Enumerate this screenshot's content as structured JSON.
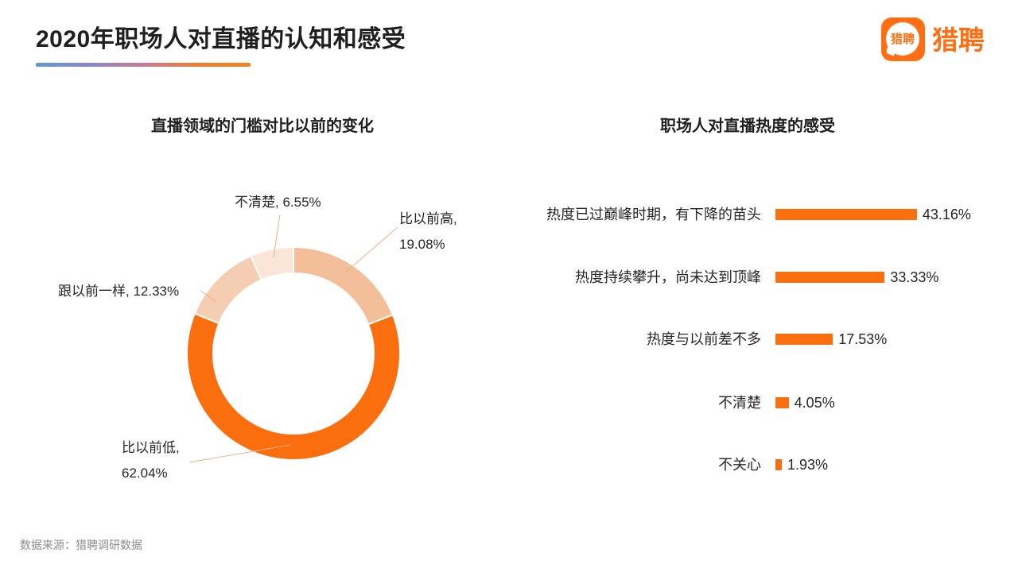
{
  "header": {
    "title": "2020年职场人对直播的认知和感受",
    "logo": {
      "bubble_text": "猎聘",
      "wordmark": "猎聘",
      "color": "#FF6E12"
    }
  },
  "colors": {
    "accent_orange": "#FA6E0E",
    "leader_line": "#F0B089",
    "underline_gradient": [
      "#5B9BD5",
      "#8A86CA",
      "#C77C93",
      "#ED7D31",
      "#F5821F"
    ]
  },
  "footer": {
    "source": "数据来源：猎聘调研数据"
  },
  "chart_data": [
    {
      "type": "pie",
      "subtype": "donut",
      "title": "直播领域的门槛对比以前的变化",
      "labels": [
        "比以前高",
        "比以前低",
        "跟以前一样",
        "不清楚"
      ],
      "values": [
        19.08,
        62.04,
        12.33,
        6.55
      ],
      "colors": [
        "#F3BF9B",
        "#FA6E0E",
        "#F5CDB2",
        "#FAE5D7"
      ],
      "start_angle_deg": 0,
      "direction": "clockwise",
      "label_format": "{label}, {value}%",
      "legend": "none"
    },
    {
      "type": "bar",
      "orientation": "horizontal",
      "title": "职场人对直播热度的感受",
      "categories": [
        "热度已过巅峰时期，有下降的苗头",
        "热度持续攀升，尚未达到顶峰",
        "热度与以前差不多",
        "不清楚",
        "不关心"
      ],
      "values": [
        43.16,
        33.33,
        17.53,
        4.05,
        1.93
      ],
      "bar_color": "#FA6E0E",
      "value_format": "{value}%",
      "xlim": [
        0,
        45
      ],
      "gridlines": false,
      "legend": "none"
    }
  ]
}
